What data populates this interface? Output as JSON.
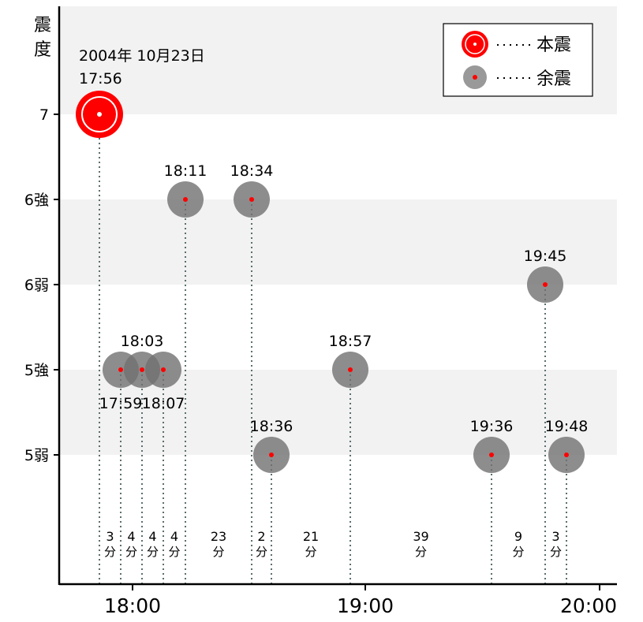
{
  "chart_data": {
    "type": "scatter",
    "title": "",
    "ylabel": [
      "震",
      "度"
    ],
    "y_ticks": [
      "7",
      "6強",
      "6弱",
      "5強",
      "5弱"
    ],
    "x_ticks": [
      "18:00",
      "19:00",
      "20:00"
    ],
    "date_label": "2004年 10月23日",
    "legend": {
      "main": "本震",
      "after": "余震",
      "placement": "top-right"
    },
    "points": [
      {
        "time": "17:56",
        "intensity": "7",
        "type": "main"
      },
      {
        "time": "17:59",
        "intensity": "5強",
        "type": "after"
      },
      {
        "time": "18:03",
        "intensity": "5強",
        "type": "after"
      },
      {
        "time": "18:07",
        "intensity": "5強",
        "type": "after"
      },
      {
        "time": "18:11",
        "intensity": "6強",
        "type": "after"
      },
      {
        "time": "18:34",
        "intensity": "6強",
        "type": "after"
      },
      {
        "time": "18:36",
        "intensity": "5弱",
        "type": "after"
      },
      {
        "time": "18:57",
        "intensity": "5強",
        "type": "after"
      },
      {
        "time": "19:36",
        "intensity": "5弱",
        "type": "after"
      },
      {
        "time": "19:45",
        "intensity": "6弱",
        "type": "after"
      },
      {
        "time": "19:48",
        "intensity": "5弱",
        "type": "after"
      }
    ],
    "intervals": [
      "3",
      "4",
      "4",
      "4",
      "23",
      "2",
      "21",
      "39",
      "9",
      "3"
    ],
    "interval_unit": "分",
    "colors": {
      "main": "#ff0000",
      "after": "#808080",
      "band": "#f2f2f2",
      "guide": "#5a6e6e"
    }
  }
}
